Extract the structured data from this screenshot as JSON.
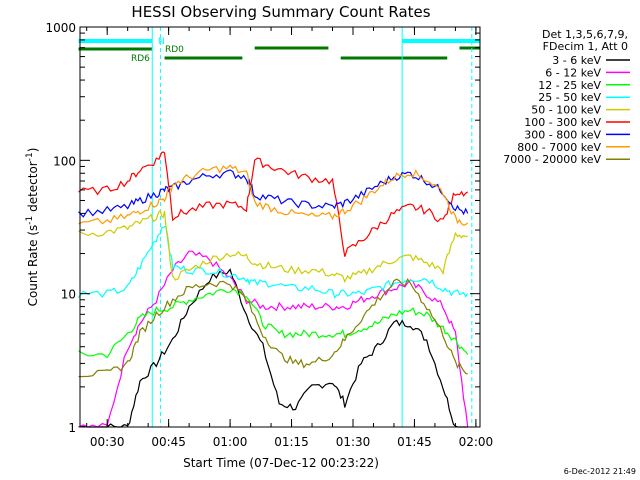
{
  "chart_data": {
    "type": "line",
    "title": "HESSI Observing Summary Count Rates",
    "xlabel": "Start Time (07-Dec-12 00:23:22)",
    "ylabel_main": "Count Rate (s",
    "ylabel_sup1": "-1",
    "ylabel_mid": " detector",
    "ylabel_sup2": "-1",
    "ylabel_end": ")",
    "y_scale": "log",
    "ylim": [
      1,
      1000
    ],
    "xlim": [
      "00:23:22",
      "02:01:00"
    ],
    "x_ticks": [
      "00:30",
      "00:45",
      "01:00",
      "01:15",
      "01:30",
      "01:45",
      "02:00"
    ],
    "y_ticks": [
      "1",
      "10",
      "100",
      "1000"
    ],
    "grid": false,
    "legend_position": "right",
    "legend_header": [
      "Det 1,3,5,6,7,9,",
      "FDecim 1, Att 0"
    ],
    "series": [
      {
        "name": "3 - 6 keV",
        "color": "#000000",
        "x": [
          "00:23",
          "00:30",
          "00:35",
          "00:38",
          "00:42",
          "00:46",
          "00:50",
          "00:55",
          "01:00",
          "01:04",
          "01:08",
          "01:12",
          "01:16",
          "01:20",
          "01:25",
          "01:28",
          "01:32",
          "01:36",
          "01:40",
          "01:44",
          "01:48",
          "01:52",
          "01:55",
          "01:58"
        ],
        "y": [
          1,
          1,
          1,
          2.2,
          3,
          4.5,
          8,
          13,
          15,
          7,
          4,
          1.5,
          1.4,
          2,
          2.2,
          1.5,
          3,
          4,
          6,
          6,
          4.5,
          2,
          1,
          1
        ]
      },
      {
        "name": "6 - 12 keV",
        "color": "#ff00ff",
        "x": [
          "00:23",
          "00:30",
          "00:35",
          "00:38",
          "00:42",
          "00:46",
          "00:50",
          "00:55",
          "01:00",
          "01:04",
          "01:08",
          "01:12",
          "01:16",
          "01:20",
          "01:25",
          "01:28",
          "01:32",
          "01:36",
          "01:40",
          "01:44",
          "01:48",
          "01:52",
          "01:55",
          "01:58"
        ],
        "y": [
          1,
          1,
          4,
          6,
          9,
          15,
          20,
          18,
          13,
          9,
          8,
          8,
          8,
          8,
          8,
          8,
          9,
          10,
          11,
          12,
          10,
          8,
          5,
          1
        ]
      },
      {
        "name": "12 - 25 keV",
        "color": "#00ff00",
        "x": [
          "00:23",
          "00:30",
          "00:35",
          "00:38",
          "00:42",
          "00:46",
          "00:50",
          "00:55",
          "01:00",
          "01:04",
          "01:08",
          "01:12",
          "01:16",
          "01:20",
          "01:25",
          "01:28",
          "01:32",
          "01:36",
          "01:40",
          "01:44",
          "01:48",
          "01:52",
          "01:55",
          "01:58"
        ],
        "y": [
          3.5,
          3.5,
          5,
          6.5,
          7.5,
          8,
          9,
          10,
          11,
          10,
          6,
          5,
          5,
          5,
          5,
          5,
          5.5,
          6,
          7,
          7.5,
          7,
          5.5,
          4.5,
          3.5
        ]
      },
      {
        "name": "25 - 50 keV",
        "color": "#00ffff",
        "x": [
          "00:23",
          "00:30",
          "00:35",
          "00:38",
          "00:42",
          "00:44",
          "00:46",
          "00:50",
          "00:55",
          "01:00",
          "01:04",
          "01:06",
          "01:10",
          "01:15",
          "01:20",
          "01:25",
          "01:28",
          "01:32",
          "01:36",
          "01:40",
          "01:44",
          "01:48",
          "01:52",
          "01:55",
          "01:58"
        ],
        "y": [
          10,
          10,
          11,
          16,
          26,
          34,
          16,
          15,
          15,
          14,
          13,
          12,
          12,
          11,
          11,
          10,
          10,
          10,
          11,
          12,
          13,
          13,
          11,
          10,
          10
        ]
      },
      {
        "name": "50 - 100 keV",
        "color": "#cccc00",
        "x": [
          "00:23",
          "00:30",
          "00:35",
          "00:38",
          "00:42",
          "00:44",
          "00:46",
          "00:50",
          "00:55",
          "01:00",
          "01:04",
          "01:06",
          "01:10",
          "01:15",
          "01:20",
          "01:25",
          "01:28",
          "01:32",
          "01:36",
          "01:40",
          "01:44",
          "01:48",
          "01:52",
          "01:55",
          "01:58"
        ],
        "y": [
          28,
          29,
          31,
          34,
          38,
          40,
          13,
          15,
          18,
          20,
          19,
          17,
          16,
          15,
          15,
          14,
          13,
          14,
          16,
          18,
          19,
          17,
          15,
          28,
          27
        ]
      },
      {
        "name": "100 - 300 keV",
        "color": "#ff0000",
        "x": [
          "00:23",
          "00:30",
          "00:35",
          "00:38",
          "00:42",
          "00:44",
          "00:46",
          "00:50",
          "00:55",
          "01:00",
          "01:04",
          "01:06",
          "01:10",
          "01:15",
          "01:20",
          "01:25",
          "01:28",
          "01:32",
          "01:36",
          "01:40",
          "01:44",
          "01:48",
          "01:52",
          "01:55",
          "01:58"
        ],
        "y": [
          58,
          60,
          70,
          85,
          100,
          118,
          38,
          42,
          46,
          47,
          44,
          100,
          90,
          80,
          73,
          70,
          20,
          25,
          32,
          40,
          45,
          42,
          35,
          58,
          58
        ]
      },
      {
        "name": "300 - 800 keV",
        "color": "#0000ff",
        "x": [
          "00:23",
          "00:30",
          "00:35",
          "00:38",
          "00:42",
          "00:44",
          "00:46",
          "00:50",
          "00:55",
          "01:00",
          "01:04",
          "01:06",
          "01:10",
          "01:15",
          "01:20",
          "01:25",
          "01:28",
          "01:32",
          "01:36",
          "01:40",
          "01:44",
          "01:48",
          "01:52",
          "01:55",
          "01:58"
        ],
        "y": [
          40,
          42,
          45,
          50,
          56,
          60,
          62,
          70,
          78,
          80,
          75,
          55,
          52,
          48,
          46,
          45,
          48,
          55,
          65,
          75,
          80,
          70,
          58,
          44,
          40
        ]
      },
      {
        "name": "800 - 7000 keV",
        "color": "#ff9900",
        "x": [
          "00:23",
          "00:30",
          "00:35",
          "00:38",
          "00:42",
          "00:44",
          "00:46",
          "00:50",
          "00:55",
          "01:00",
          "01:04",
          "01:06",
          "01:10",
          "01:15",
          "01:20",
          "01:25",
          "01:28",
          "01:32",
          "01:36",
          "01:40",
          "01:44",
          "01:48",
          "01:52",
          "01:55",
          "01:58"
        ],
        "y": [
          33,
          35,
          38,
          42,
          48,
          52,
          66,
          75,
          85,
          88,
          80,
          48,
          44,
          40,
          38,
          38,
          42,
          50,
          62,
          75,
          82,
          72,
          58,
          36,
          34
        ]
      },
      {
        "name": "7000 - 20000 keV",
        "color": "#808000",
        "x": [
          "00:23",
          "00:30",
          "00:35",
          "00:38",
          "00:42",
          "00:46",
          "00:50",
          "00:55",
          "01:00",
          "01:04",
          "01:08",
          "01:12",
          "01:16",
          "01:20",
          "01:25",
          "01:28",
          "01:32",
          "01:36",
          "01:40",
          "01:44",
          "01:48",
          "01:52",
          "01:55",
          "01:58"
        ],
        "y": [
          2.5,
          2.5,
          3,
          5,
          7,
          9,
          11,
          12,
          12,
          9,
          5,
          3.5,
          3,
          3,
          3.5,
          4.5,
          6.5,
          9,
          12,
          12,
          8,
          5,
          3,
          2.5
        ]
      }
    ],
    "annotations": [
      {
        "text": "N",
        "color": "#00ffff"
      },
      {
        "text": "RD0",
        "color": "#007700"
      },
      {
        "text": "RD6",
        "color": "#007700"
      }
    ],
    "night_bars": [
      [
        "00:23",
        "00:41"
      ],
      [
        "01:42",
        "02:01"
      ]
    ],
    "saa_bars": [
      [
        "00:23",
        "00:41"
      ],
      [
        "00:44",
        "01:03"
      ],
      [
        "01:06",
        "01:24"
      ],
      [
        "01:27",
        "01:53"
      ],
      [
        "01:56",
        "02:01"
      ]
    ],
    "boundary_times": [
      "00:41",
      "01:42"
    ],
    "dashed_times": [
      "00:43",
      "01:59"
    ]
  },
  "footer_stamp": "6-Dec-2012 21:49"
}
